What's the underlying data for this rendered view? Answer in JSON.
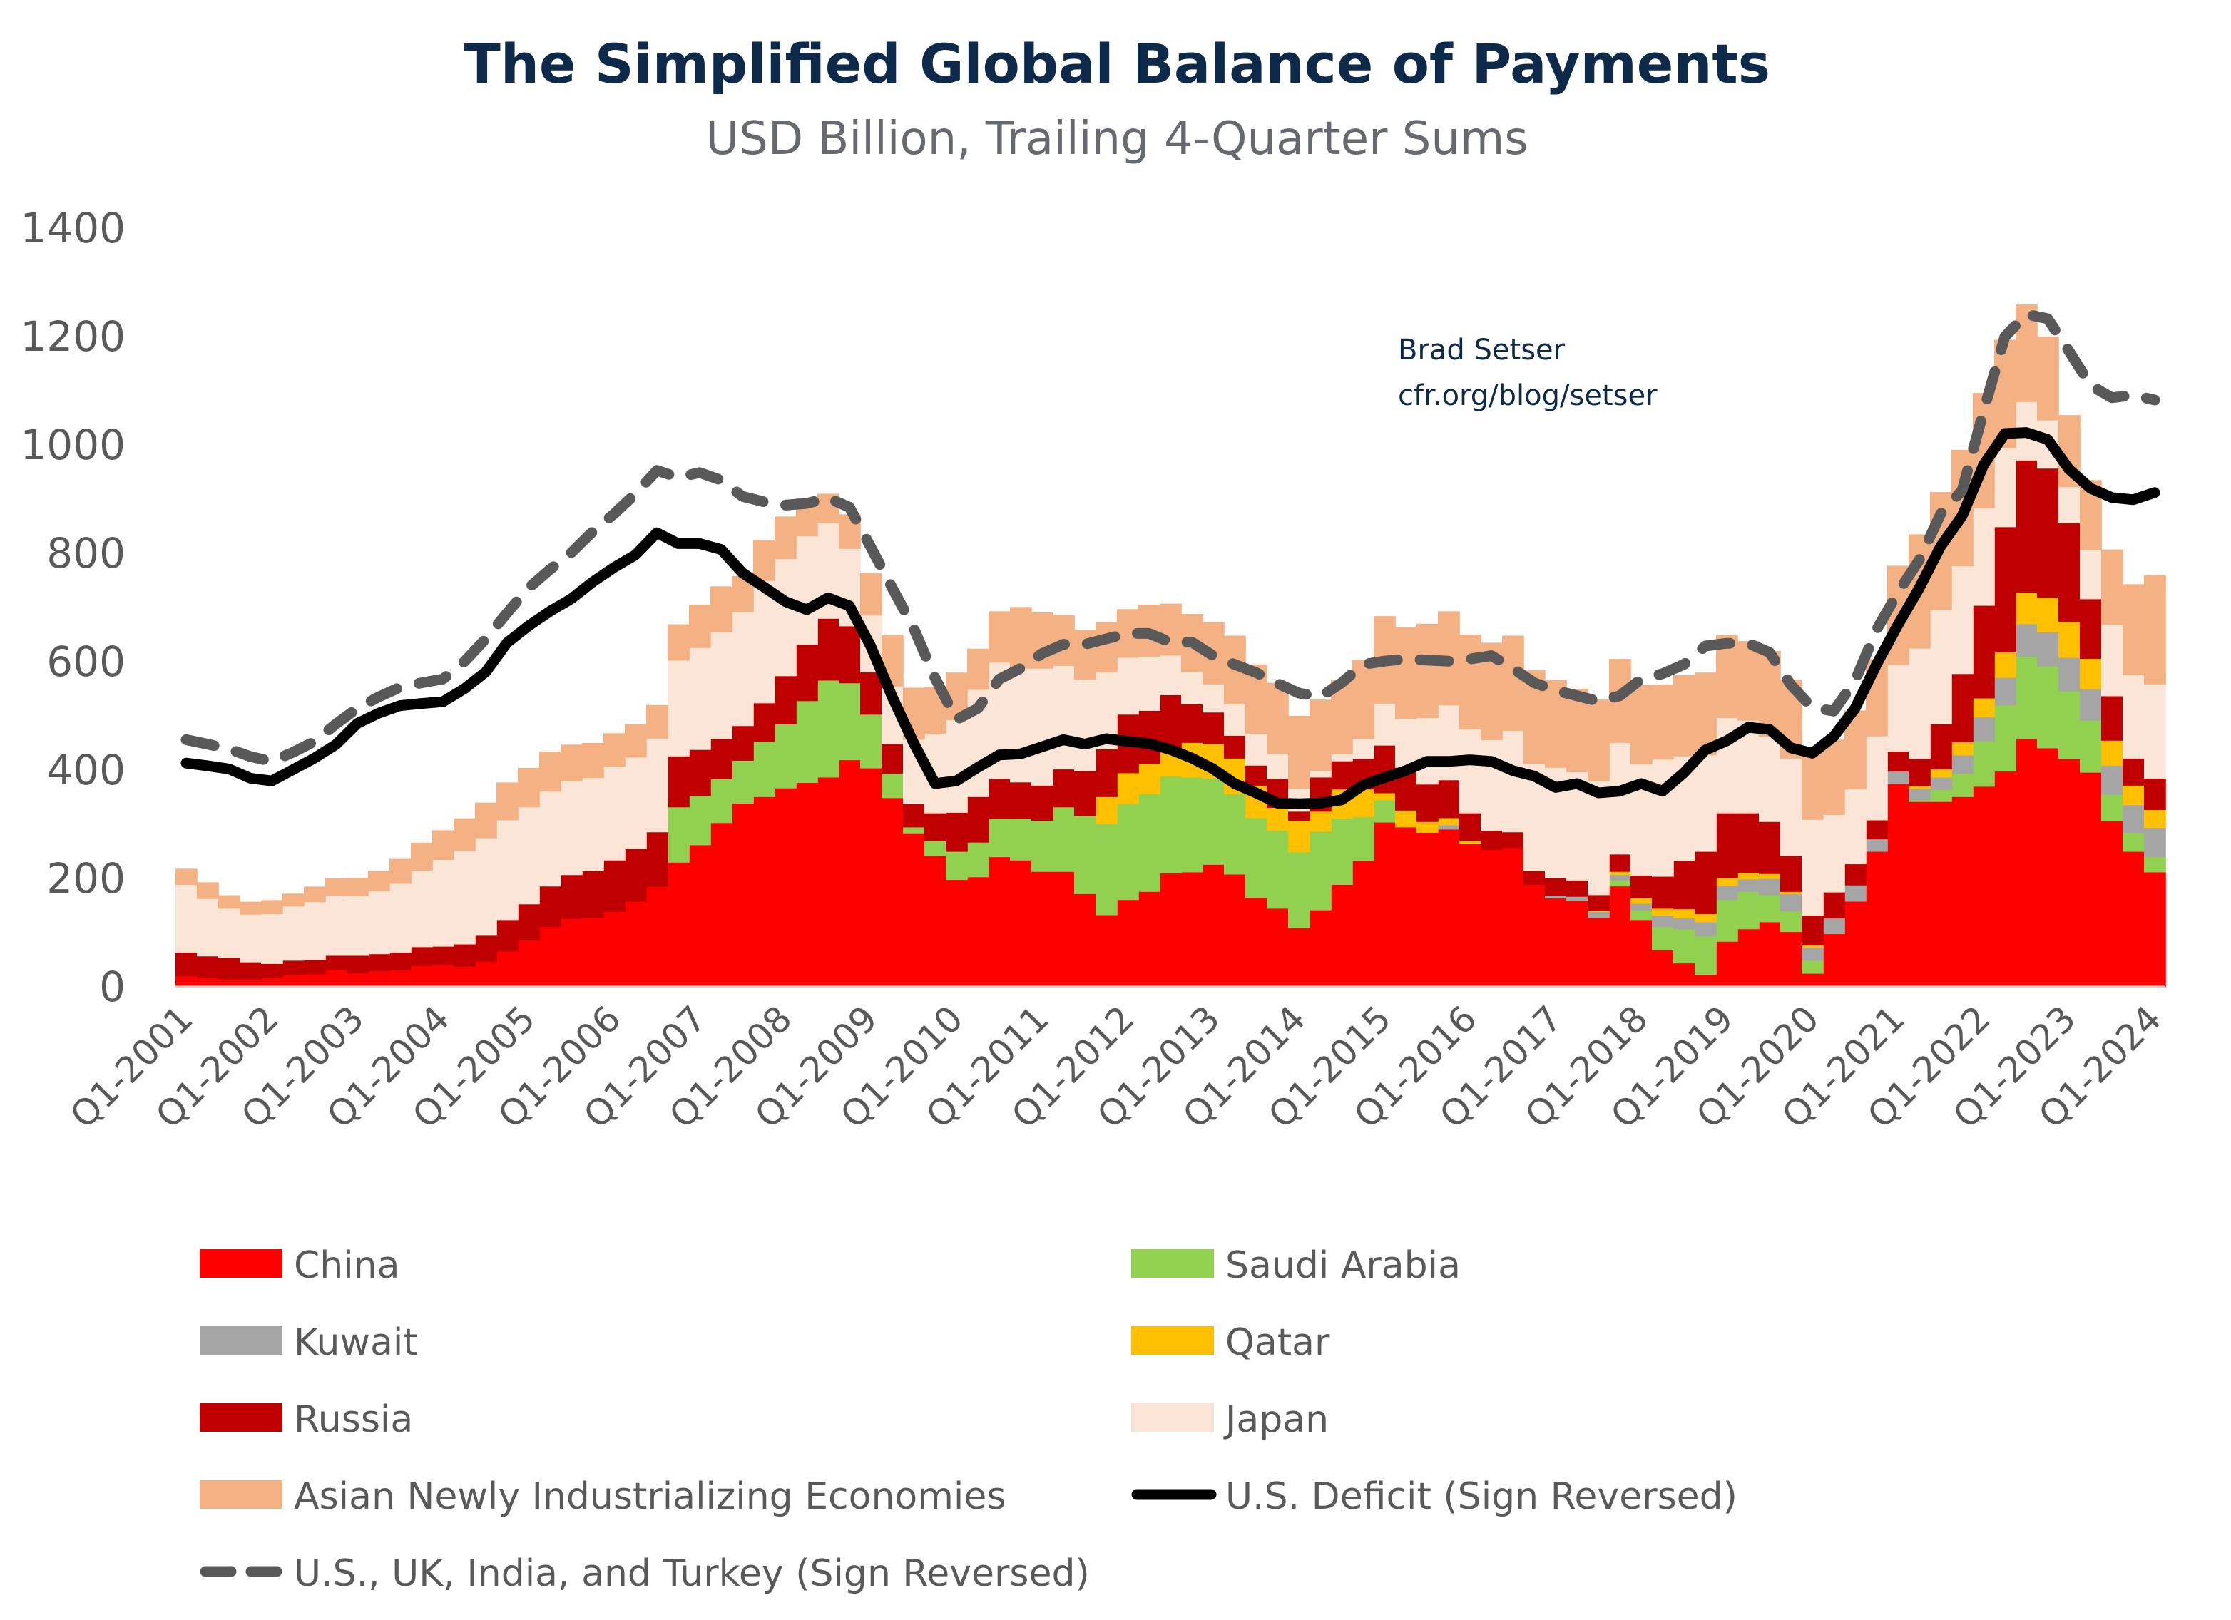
{
  "chart_data": {
    "type": "area",
    "subtype": "stacked-step-area-with-lines",
    "title": "The Simplified Global Balance of Payments",
    "subtitle": "USD Billion, Trailing 4-Quarter Sums",
    "annotation": [
      "Brad Setser",
      "cfr.org/blog/setser"
    ],
    "x_frequency": "quarterly",
    "x_first": "Q1-2001",
    "x_last": "Q1-2024",
    "x_tick_labels": [
      "Q1-2001",
      "Q1-2002",
      "Q1-2003",
      "Q1-2004",
      "Q1-2005",
      "Q1-2006",
      "Q1-2007",
      "Q1-2008",
      "Q1-2009",
      "Q1-2010",
      "Q1-2011",
      "Q1-2012",
      "Q1-2013",
      "Q1-2014",
      "Q1-2015",
      "Q1-2016",
      "Q1-2017",
      "Q1-2018",
      "Q1-2019",
      "Q1-2020",
      "Q1-2021",
      "Q1-2022",
      "Q1-2023",
      "Q1-2024"
    ],
    "ylim": [
      0,
      1400
    ],
    "y_ticks": [
      "0",
      "200",
      "400",
      "600",
      "800",
      "1000",
      "1200",
      "1400"
    ],
    "grid": false,
    "legend_placement": "bottom",
    "stacked_series": [
      {
        "name": "China",
        "color": "#ff0000",
        "values": [
          20,
          17,
          14,
          14,
          17,
          22,
          24,
          32,
          26,
          30,
          31,
          39,
          41,
          38,
          47,
          66,
          86,
          111,
          126,
          128,
          139,
          158,
          185,
          230,
          262,
          303,
          339,
          351,
          367,
          377,
          387,
          419,
          404,
          349,
          284,
          242,
          198,
          203,
          240,
          234,
          213,
          213,
          172,
          133,
          161,
          176,
          210,
          212,
          226,
          208,
          165,
          145,
          109,
          142,
          189,
          233,
          304,
          295,
          285,
          291,
          264,
          253,
          257,
          189,
          164,
          159,
          128,
          186,
          124,
          68,
          44,
          23,
          84,
          107,
          120,
          102,
          25,
          98,
          158,
          250,
          375,
          342,
          342,
          351,
          370,
          398,
          458,
          441,
          421,
          396,
          306,
          250,
          212
        ]
      },
      {
        "name": "Saudi Arabia",
        "color": "#92d050",
        "values": [
          0,
          0,
          0,
          0,
          0,
          0,
          0,
          0,
          0,
          0,
          0,
          0,
          0,
          0,
          0,
          0,
          0,
          0,
          0,
          0,
          0,
          0,
          0,
          102,
          91,
          81,
          79,
          102,
          118,
          151,
          179,
          142,
          99,
          45,
          11,
          28,
          52,
          64,
          71,
          77,
          94,
          119,
          144,
          168,
          177,
          180,
          179,
          175,
          159,
          148,
          147,
          144,
          140,
          145,
          122,
          81,
          41,
          0,
          0,
          0,
          0,
          0,
          0,
          0,
          0,
          0,
          0,
          11,
          18,
          43,
          63,
          71,
          77,
          69,
          50,
          38,
          24,
          0,
          0,
          0,
          0,
          3,
          22,
          43,
          84,
          122,
          152,
          151,
          125,
          96,
          49,
          35,
          28
        ]
      },
      {
        "name": "Kuwait",
        "color": "#a5a5a5",
        "values": [
          0,
          0,
          0,
          0,
          0,
          0,
          0,
          0,
          0,
          0,
          0,
          0,
          0,
          0,
          0,
          0,
          0,
          0,
          0,
          0,
          0,
          0,
          0,
          0,
          0,
          0,
          0,
          0,
          0,
          0,
          0,
          0,
          0,
          0,
          0,
          0,
          0,
          0,
          0,
          0,
          0,
          0,
          0,
          0,
          0,
          0,
          0,
          0,
          0,
          0,
          0,
          0,
          0,
          0,
          0,
          0,
          0,
          0,
          0,
          8,
          0,
          0,
          0,
          0,
          5,
          8,
          11,
          10,
          12,
          21,
          20,
          26,
          26,
          23,
          30,
          32,
          24,
          29,
          30,
          23,
          23,
          21,
          23,
          34,
          44,
          51,
          60,
          63,
          62,
          58,
          54,
          51,
          54
        ]
      },
      {
        "name": "Qatar",
        "color": "#ffc000",
        "values": [
          0,
          0,
          0,
          0,
          0,
          0,
          0,
          0,
          0,
          0,
          0,
          0,
          0,
          0,
          0,
          0,
          0,
          0,
          0,
          0,
          0,
          0,
          0,
          0,
          0,
          0,
          0,
          0,
          0,
          0,
          0,
          0,
          0,
          0,
          0,
          0,
          0,
          0,
          0,
          0,
          0,
          0,
          0,
          50,
          57,
          56,
          51,
          64,
          64,
          66,
          60,
          42,
          58,
          37,
          54,
          51,
          13,
          31,
          20,
          13,
          6,
          0,
          0,
          0,
          0,
          0,
          2,
          6,
          10,
          13,
          17,
          15,
          14,
          12,
          9,
          4,
          4,
          0,
          0,
          0,
          0,
          5,
          15,
          24,
          35,
          47,
          58,
          64,
          66,
          56,
          46,
          36,
          33
        ]
      },
      {
        "name": "Russia",
        "color": "#c00000",
        "values": [
          44,
          40,
          40,
          32,
          26,
          27,
          26,
          26,
          32,
          31,
          33,
          35,
          34,
          41,
          48,
          58,
          67,
          75,
          81,
          86,
          95,
          97,
          101,
          94,
          85,
          74,
          64,
          71,
          89,
          104,
          114,
          105,
          78,
          55,
          43,
          51,
          72,
          84,
          73,
          67,
          65,
          70,
          83,
          88,
          108,
          98,
          99,
          71,
          58,
          42,
          37,
          53,
          17,
          63,
          52,
          56,
          88,
          79,
          69,
          70,
          51,
          36,
          29,
          25,
          32,
          30,
          29,
          32,
          42,
          59,
          89,
          115,
          120,
          110,
          96,
          66,
          55,
          48,
          39,
          35,
          37,
          50,
          83,
          126,
          171,
          231,
          244,
          238,
          182,
          110,
          82,
          50,
          58
        ]
      },
      {
        "name": "Japan",
        "color": "#fbe5d6",
        "values": [
          125,
          106,
          91,
          88,
          92,
          100,
          107,
          111,
          110,
          116,
          127,
          140,
          160,
          172,
          180,
          184,
          179,
          175,
          173,
          172,
          173,
          169,
          173,
          177,
          188,
          197,
          210,
          226,
          216,
          200,
          176,
          143,
          105,
          106,
          119,
          147,
          171,
          198,
          215,
          210,
          216,
          191,
          169,
          142,
          105,
          100,
          73,
          60,
          52,
          58,
          59,
          47,
          42,
          12,
          13,
          37,
          77,
          90,
          123,
          138,
          155,
          167,
          187,
          198,
          204,
          200,
          210,
          206,
          205,
          216,
          193,
          178,
          176,
          171,
          157,
          180,
          177,
          143,
          138,
          155,
          160,
          204,
          211,
          199,
          180,
          146,
          108,
          89,
          67,
          91,
          132,
          154,
          174
        ]
      },
      {
        "name": "Asian Newly Industrializing Economies",
        "color": "#f4b183",
        "values": [
          29,
          30,
          24,
          23,
          25,
          23,
          28,
          31,
          33,
          37,
          45,
          52,
          54,
          60,
          65,
          69,
          72,
          73,
          67,
          64,
          61,
          61,
          61,
          66,
          79,
          84,
          66,
          75,
          78,
          70,
          54,
          63,
          77,
          94,
          95,
          86,
          87,
          75,
          94,
          113,
          103,
          93,
          91,
          92,
          89,
          95,
          95,
          106,
          114,
          126,
          127,
          130,
          134,
          131,
          136,
          146,
          161,
          168,
          173,
          173,
          174,
          179,
          175,
          172,
          161,
          153,
          150,
          154,
          146,
          138,
          149,
          152,
          152,
          146,
          158,
          145,
          134,
          139,
          145,
          142,
          182,
          210,
          217,
          214,
          212,
          199,
          179,
          154,
          132,
          128,
          138,
          167,
          201
        ]
      }
    ],
    "line_series": [
      {
        "name": "U.S. Deficit (Sign Reversed)",
        "color": "#000000",
        "style": "solid",
        "values": [
          413,
          408,
          402,
          385,
          380,
          401,
          422,
          447,
          486,
          505,
          519,
          523,
          526,
          550,
          581,
          635,
          666,
          693,
          716,
          747,
          774,
          797,
          838,
          818,
          818,
          807,
          764,
          738,
          711,
          696,
          718,
          703,
          628,
          535,
          450,
          375,
          380,
          405,
          428,
          430,
          443,
          456,
          448,
          458,
          453,
          449,
          438,
          422,
          402,
          375,
          358,
          339,
          338,
          339,
          345,
          372,
          386,
          399,
          416,
          416,
          419,
          416,
          399,
          389,
          368,
          375,
          358,
          361,
          375,
          361,
          395,
          437,
          454,
          479,
          475,
          441,
          431,
          462,
          514,
          595,
          668,
          736,
          813,
          869,
          963,
          1021,
          1023,
          1010,
          955,
          920,
          903,
          899,
          912
        ]
      },
      {
        "name": "U.S., UK, India, and Turkey (Sign Reversed)",
        "color": "#595959",
        "style": "dashed",
        "values": [
          456,
          448,
          439,
          425,
          416,
          433,
          453,
          485,
          514,
          535,
          553,
          561,
          568,
          600,
          642,
          690,
          736,
          770,
          801,
          840,
          873,
          910,
          953,
          940,
          949,
          935,
          905,
          895,
          889,
          892,
          902,
          885,
          811,
          736,
          662,
          570,
          493,
          514,
          568,
          588,
          615,
          632,
          632,
          642,
          652,
          652,
          636,
          636,
          611,
          595,
          580,
          560,
          542,
          535,
          561,
          595,
          601,
          605,
          603,
          601,
          605,
          611,
          588,
          561,
          547,
          537,
          527,
          537,
          568,
          578,
          595,
          629,
          634,
          634,
          617,
          557,
          515,
          509,
          565,
          659,
          728,
          788,
          873,
          916,
          1062,
          1200,
          1241,
          1233,
          1173,
          1110,
          1087,
          1092,
          1083
        ]
      }
    ]
  }
}
